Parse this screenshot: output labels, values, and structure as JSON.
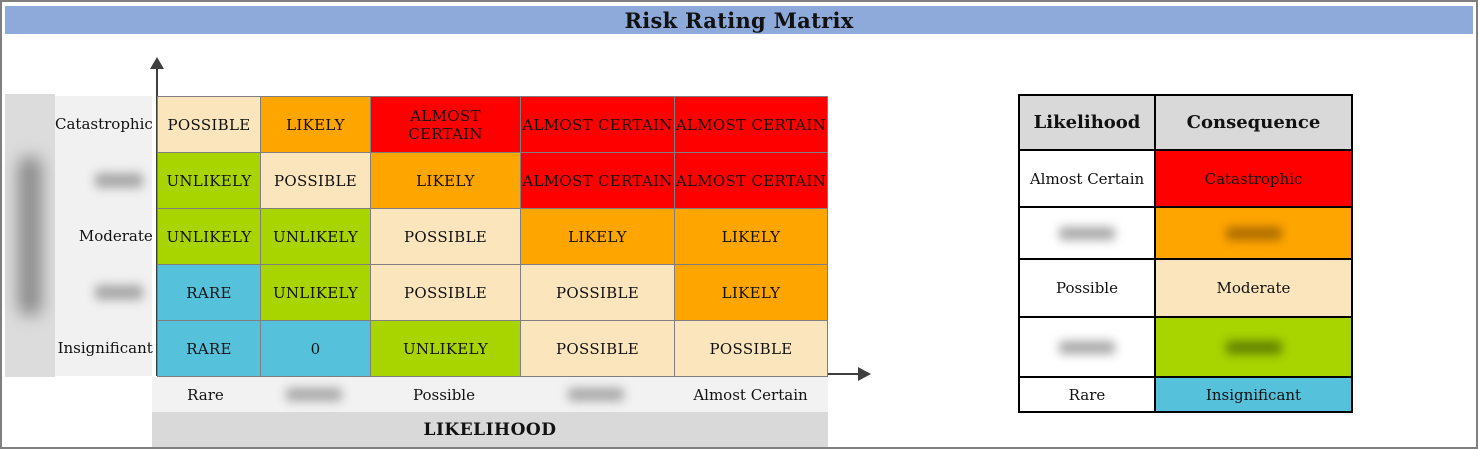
{
  "title": "Risk Rating Matrix",
  "colors": {
    "title_bar": "#8EAADB",
    "red": "#FF0000",
    "orange": "#FFA500",
    "tan": "#FBE5BD",
    "green": "#A8D400",
    "blue": "#56C1DA",
    "header_gray": "#D9D9D9",
    "band_light": "#F2F2F2",
    "strip_gray": "#DCDCDC",
    "axis": "#3F3F3F"
  },
  "chart_data": {
    "type": "heatmap",
    "title": "Risk Rating Matrix",
    "xlabel": "LIKELIHOOD",
    "ylabel": "",
    "ylabel_redacted": true,
    "y_categories": [
      {
        "text": "Catastrophic",
        "redacted": false
      },
      {
        "text": "",
        "redacted": true
      },
      {
        "text": "Moderate",
        "redacted": false
      },
      {
        "text": "",
        "redacted": true
      },
      {
        "text": "Insignificant",
        "redacted": false
      }
    ],
    "x_categories": [
      {
        "text": "Rare",
        "redacted": false
      },
      {
        "text": "",
        "redacted": true
      },
      {
        "text": "Possible",
        "redacted": false
      },
      {
        "text": "",
        "redacted": true
      },
      {
        "text": "Almost Certain",
        "redacted": false
      }
    ],
    "cells": [
      [
        {
          "label": "POSSIBLE",
          "level": "tan"
        },
        {
          "label": "LIKELY",
          "level": "orange"
        },
        {
          "label": "ALMOST CERTAIN",
          "level": "red"
        },
        {
          "label": "ALMOST CERTAIN",
          "level": "red"
        },
        {
          "label": "ALMOST CERTAIN",
          "level": "red"
        }
      ],
      [
        {
          "label": "UNLIKELY",
          "level": "green"
        },
        {
          "label": "POSSIBLE",
          "level": "tan"
        },
        {
          "label": "LIKELY",
          "level": "orange"
        },
        {
          "label": "ALMOST CERTAIN",
          "level": "red"
        },
        {
          "label": "ALMOST CERTAIN",
          "level": "red"
        }
      ],
      [
        {
          "label": "UNLIKELY",
          "level": "green"
        },
        {
          "label": "UNLIKELY",
          "level": "green"
        },
        {
          "label": "POSSIBLE",
          "level": "tan"
        },
        {
          "label": "LIKELY",
          "level": "orange"
        },
        {
          "label": "LIKELY",
          "level": "orange"
        }
      ],
      [
        {
          "label": "RARE",
          "level": "blue"
        },
        {
          "label": "UNLIKELY",
          "level": "green"
        },
        {
          "label": "POSSIBLE",
          "level": "tan"
        },
        {
          "label": "POSSIBLE",
          "level": "tan"
        },
        {
          "label": "LIKELY",
          "level": "orange"
        }
      ],
      [
        {
          "label": "RARE",
          "level": "blue"
        },
        {
          "label": "0",
          "level": "blue"
        },
        {
          "label": "UNLIKELY",
          "level": "green"
        },
        {
          "label": "POSSIBLE",
          "level": "tan"
        },
        {
          "label": "POSSIBLE",
          "level": "tan"
        }
      ]
    ],
    "legend": {
      "headers": [
        "Likelihood",
        "Consequence"
      ],
      "rows": [
        {
          "likelihood": "Almost Certain",
          "consequence": "Catastrophic",
          "level": "red",
          "redacted": false
        },
        {
          "likelihood": "",
          "consequence": "",
          "level": "orange",
          "redacted": true
        },
        {
          "likelihood": "Possible",
          "consequence": "Moderate",
          "level": "tan",
          "redacted": false
        },
        {
          "likelihood": "",
          "consequence": "",
          "level": "green",
          "redacted": true
        },
        {
          "likelihood": "Rare",
          "consequence": "Insignificant",
          "level": "blue",
          "redacted": false
        }
      ]
    }
  }
}
